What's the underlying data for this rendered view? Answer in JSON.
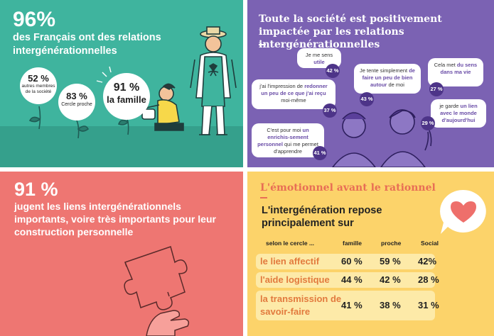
{
  "teal": {
    "big": "96%",
    "subtitle": "des Français ont des relations intergénérationnelles",
    "bubbles": [
      {
        "pct": "52 %",
        "label": "autres membres de la société"
      },
      {
        "pct": "83 %",
        "label": "Cercle proche"
      },
      {
        "pct": "91 %",
        "label": "la famille"
      }
    ]
  },
  "purple": {
    "title": "Toute la société est positivement impactée par les relations intergénérationnelles",
    "quotes": [
      {
        "pre": "Je me sens ",
        "bold": "utile",
        "post": "",
        "pct": "42 %"
      },
      {
        "pre": "j'ai l'impression de ",
        "bold": "redonner un peu de ce que j'ai reçu",
        "post": " moi-même",
        "pct": "37 %"
      },
      {
        "pre": "C'est pour moi ",
        "bold": "un enrichis-sement personnel",
        "post": " qui me permet d'apprendre",
        "pct": "41 %"
      },
      {
        "pre": "Je tente simplement ",
        "bold": "de faire un peu de bien autour",
        "post": " de moi",
        "pct": "43 %"
      },
      {
        "pre": "Cela met ",
        "bold": "du sens dans ma vie",
        "post": "",
        "pct": "27 %"
      },
      {
        "pre": "je garde ",
        "bold": "un lien avec le monde d'aujourd'hui",
        "post": "",
        "pct": "29 %"
      }
    ]
  },
  "coral": {
    "big": "91 %",
    "subtitle": "jugent les liens intergénérationnels importants, voire très importants pour leur construction personnelle"
  },
  "yellow": {
    "title": "L'émotionnel avant le rationnel",
    "subtitle": "L'intergénération repose principalement sur",
    "header_label": "selon le cercle ...",
    "columns": [
      "famille",
      "proche",
      "Social"
    ],
    "rows": [
      {
        "label": "le lien affectif",
        "values": [
          "60 %",
          "59 %",
          "42%"
        ]
      },
      {
        "label": "l'aide logistique",
        "values": [
          "44 %",
          "42 %",
          "28 %"
        ]
      },
      {
        "label": "la transmission de savoir-faire",
        "values": [
          "41 %",
          "38 %",
          "31 %"
        ]
      }
    ],
    "icon": "heart-speech-bubble-icon"
  }
}
